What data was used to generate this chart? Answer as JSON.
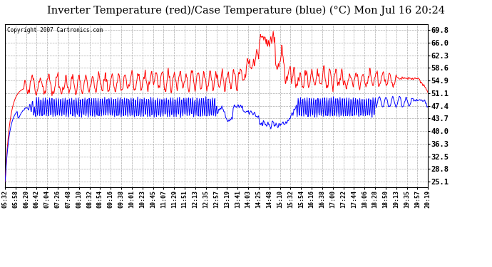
{
  "title": "Inverter Temperature (red)/Case Temperature (blue) (°C) Mon Jul 16 20:24",
  "copyright": "Copyright 2007 Cartronics.com",
  "yticks": [
    25.1,
    28.8,
    32.5,
    36.3,
    40.0,
    43.7,
    47.4,
    51.1,
    54.9,
    58.6,
    62.3,
    66.0,
    69.8
  ],
  "ymin": 23.5,
  "ymax": 71.5,
  "background_color": "#ffffff",
  "plot_bg_color": "#ffffff",
  "grid_color": "#aaaaaa",
  "red_color": "#ff0000",
  "blue_color": "#0000ff",
  "title_fontsize": 10.5,
  "xtick_labels": [
    "05:32",
    "05:58",
    "06:20",
    "06:42",
    "07:04",
    "07:26",
    "07:48",
    "08:10",
    "08:32",
    "08:54",
    "09:16",
    "09:38",
    "10:01",
    "10:23",
    "10:45",
    "11:07",
    "11:29",
    "11:51",
    "12:13",
    "12:35",
    "12:57",
    "13:19",
    "13:41",
    "14:03",
    "14:25",
    "14:48",
    "15:10",
    "15:32",
    "15:54",
    "16:16",
    "16:38",
    "17:00",
    "17:22",
    "17:44",
    "18:06",
    "18:28",
    "18:50",
    "19:13",
    "19:35",
    "19:57",
    "20:19"
  ]
}
